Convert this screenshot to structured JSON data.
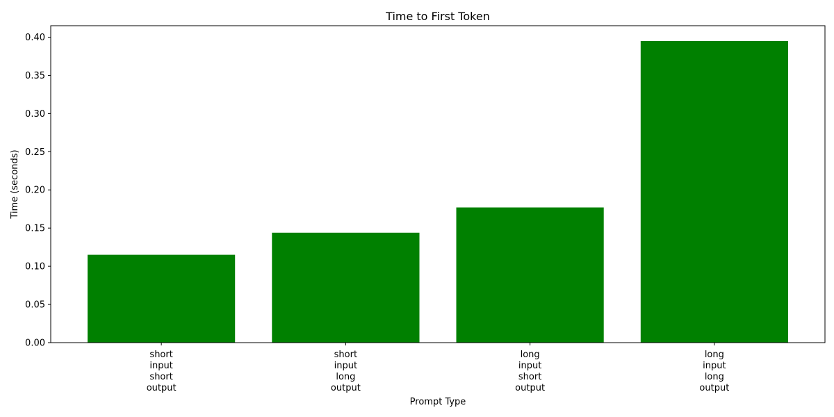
{
  "chart_data": {
    "type": "bar",
    "title": "Time to First Token",
    "xlabel": "Prompt Type",
    "ylabel": "Time (seconds)",
    "categories": [
      "short\ninput\nshort\noutput",
      "short\ninput\nlong\noutput",
      "long\ninput\nshort\noutput",
      "long\ninput\nlong\noutput"
    ],
    "values": [
      0.115,
      0.144,
      0.177,
      0.395
    ],
    "ylim": [
      0,
      0.415
    ],
    "yticks": [
      0.0,
      0.05,
      0.1,
      0.15,
      0.2,
      0.25,
      0.3,
      0.35,
      0.4
    ],
    "ytick_labels": [
      "0.00",
      "0.05",
      "0.10",
      "0.15",
      "0.20",
      "0.25",
      "0.30",
      "0.35",
      "0.40"
    ],
    "bar_color": "#008000",
    "grid": false,
    "legend": "none"
  }
}
